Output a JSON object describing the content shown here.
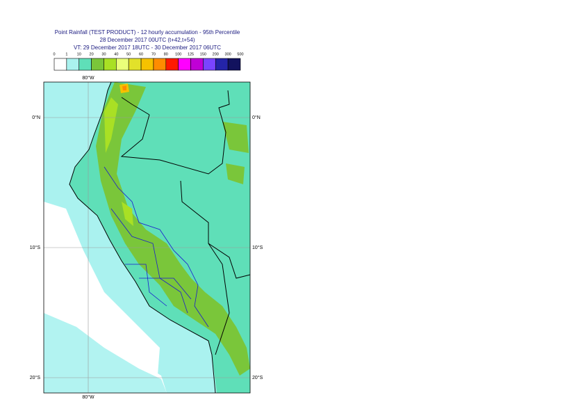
{
  "title": {
    "line1": "Point Rainfall (TEST PRODUCT) - 12 hourly accumulation - 95th Percentile",
    "line2": "28 December 2017 00UTC (t+42,t+54)",
    "line3": "VT: 29 December 2017 18UTC - 30 December 2017 06UTC"
  },
  "legend": {
    "labels": [
      "0",
      "1",
      "10",
      "20",
      "30",
      "40",
      "50",
      "60",
      "70",
      "80",
      "100",
      "125",
      "150",
      "200",
      "300",
      "500"
    ],
    "colors": [
      "#ffffff",
      "#aaf2ef",
      "#5fdfb8",
      "#7ac63a",
      "#a9e024",
      "#eaff7a",
      "#e2e12a",
      "#f6c200",
      "#ff8c00",
      "#ff1a00",
      "#ff00ff",
      "#c000d6",
      "#7a44ff",
      "#2424a8",
      "#12125e"
    ]
  },
  "map": {
    "lon_labels": [
      "80°W"
    ],
    "lat_labels": [
      "0°N",
      "10°S",
      "20°S"
    ]
  }
}
